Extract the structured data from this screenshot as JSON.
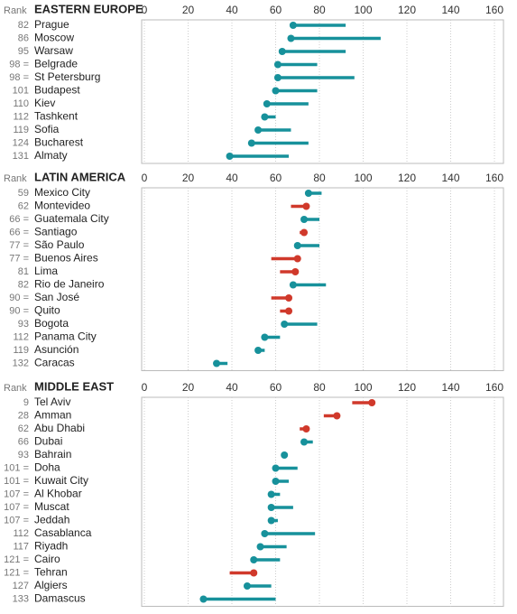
{
  "chart_data": [
    {
      "type": "dot-range",
      "title": "EASTERN EUROPE",
      "rank_label": "Rank",
      "categories": [
        "Prague",
        "Moscow",
        "Warsaw",
        "Belgrade",
        "St Petersburg",
        "Budapest",
        "Kiev",
        "Tashkent",
        "Sofia",
        "Bucharest",
        "Almaty"
      ],
      "ranks": [
        "82",
        "86",
        "95",
        "98 =",
        "98 =",
        "101",
        "110",
        "112",
        "119",
        "124",
        "131"
      ],
      "values": [
        68,
        67,
        63,
        61,
        61,
        60,
        56,
        55,
        52,
        49,
        39
      ],
      "ends": [
        92,
        108,
        92,
        79,
        96,
        79,
        75,
        60,
        67,
        75,
        66
      ],
      "xlim": [
        0,
        160
      ],
      "xticks": [
        0,
        20,
        40,
        60,
        80,
        100,
        120,
        140,
        160
      ],
      "up_color": "#17919b",
      "down_color": "#d0392b",
      "grid": true
    },
    {
      "type": "dot-range",
      "title": "LATIN AMERICA",
      "rank_label": "Rank",
      "categories": [
        "Mexico City",
        "Montevideo",
        "Guatemala City",
        "Santiago",
        "São Paulo",
        "Buenos Aires",
        "Lima",
        "Rio de Janeiro",
        "San José",
        "Quito",
        "Bogota",
        "Panama City",
        "Asunción",
        "Caracas"
      ],
      "ranks": [
        "59",
        "62",
        "66 =",
        "66 =",
        "77 =",
        "77 =",
        "81",
        "82",
        "90 =",
        "90 =",
        "93",
        "112",
        "119",
        "132"
      ],
      "values": [
        75,
        74,
        73,
        73,
        70,
        70,
        69,
        68,
        66,
        66,
        64,
        55,
        52,
        33
      ],
      "ends": [
        81,
        67,
        80,
        71,
        80,
        58,
        62,
        83,
        58,
        62,
        79,
        62,
        55,
        38
      ],
      "xlim": [
        0,
        160
      ],
      "xticks": [
        0,
        20,
        40,
        60,
        80,
        100,
        120,
        140,
        160
      ],
      "up_color": "#17919b",
      "down_color": "#d0392b",
      "grid": true
    },
    {
      "type": "dot-range",
      "title": "MIDDLE EAST",
      "rank_label": "Rank",
      "categories": [
        "Tel Aviv",
        "Amman",
        "Abu Dhabi",
        "Dubai",
        "Bahrain",
        "Doha",
        "Kuwait City",
        "Al Khobar",
        "Muscat",
        "Jeddah",
        "Casablanca",
        "Riyadh",
        "Cairo",
        "Tehran",
        "Algiers",
        "Damascus"
      ],
      "ranks": [
        "9",
        "28",
        "62",
        "66",
        "93",
        "101 =",
        "101 =",
        "107 =",
        "107 =",
        "107 =",
        "112",
        "117",
        "121 =",
        "121 =",
        "127",
        "133"
      ],
      "values": [
        104,
        88,
        74,
        73,
        64,
        60,
        60,
        58,
        58,
        58,
        55,
        53,
        50,
        50,
        47,
        27
      ],
      "ends": [
        95,
        82,
        71,
        77,
        64,
        70,
        66,
        62,
        68,
        61,
        78,
        65,
        62,
        39,
        58,
        60
      ],
      "xlim": [
        0,
        160
      ],
      "xticks": [
        0,
        20,
        40,
        60,
        80,
        100,
        120,
        140,
        160
      ],
      "up_color": "#17919b",
      "down_color": "#d0392b",
      "grid": true
    }
  ]
}
